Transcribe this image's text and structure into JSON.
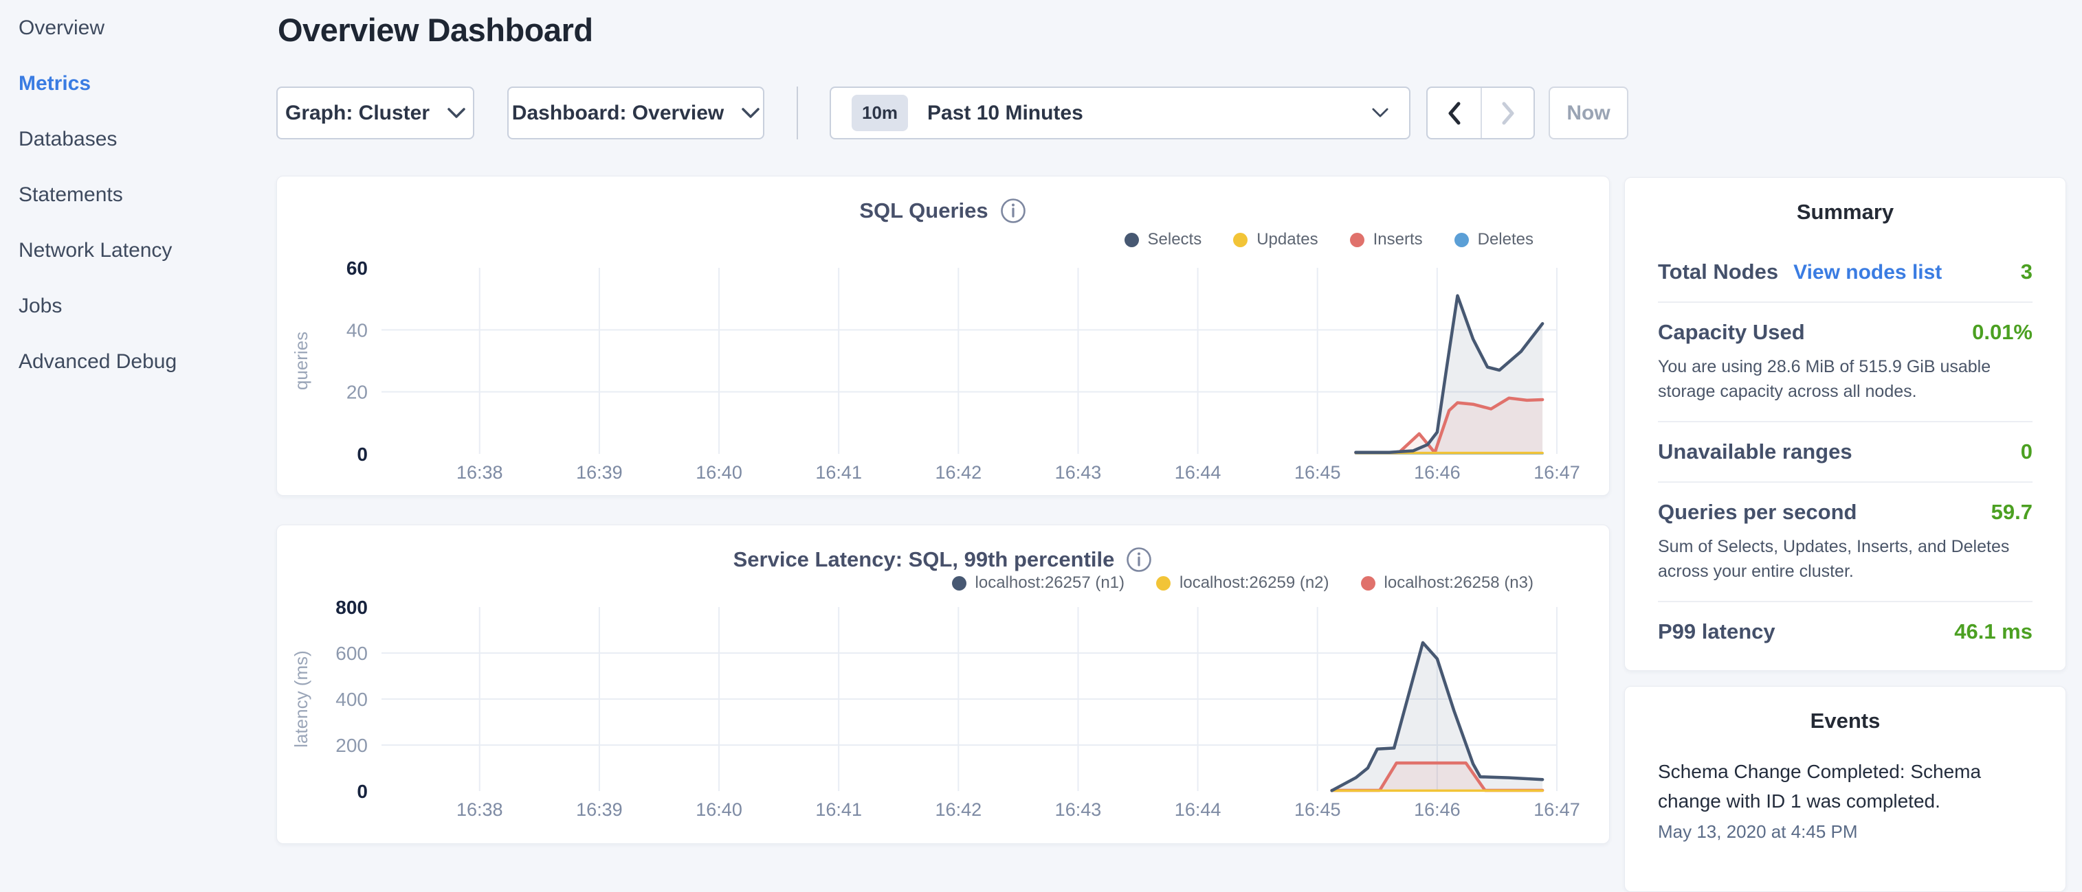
{
  "header": {
    "title": "Overview Dashboard"
  },
  "sidebar": {
    "active_color": "#3a7ce2",
    "items": [
      {
        "label": "Overview",
        "active": false
      },
      {
        "label": "Metrics",
        "active": true
      },
      {
        "label": "Databases",
        "active": false
      },
      {
        "label": "Statements",
        "active": false
      },
      {
        "label": "Network Latency",
        "active": false
      },
      {
        "label": "Jobs",
        "active": false
      },
      {
        "label": "Advanced Debug",
        "active": false
      }
    ]
  },
  "controls": {
    "graph_dropdown": "Graph: Cluster",
    "dashboard_dropdown": "Dashboard: Overview",
    "time_badge": "10m",
    "time_label": "Past 10 Minutes",
    "now_label": "Now"
  },
  "chart_data": [
    {
      "type": "area",
      "title": "SQL Queries",
      "ylabel": "queries",
      "ylim": [
        0,
        60
      ],
      "yticks": [
        0,
        20,
        40,
        60
      ],
      "grid": true,
      "legend_position": "top-right",
      "x_axis": {
        "start_min": 37.18,
        "end_min": 47.0,
        "tick_minutes": [
          38,
          39,
          40,
          41,
          42,
          43,
          44,
          45,
          46,
          47
        ],
        "tick_labels": [
          "16:38",
          "16:39",
          "16:40",
          "16:41",
          "16:42",
          "16:43",
          "16:44",
          "16:45",
          "16:46",
          "16:47"
        ]
      },
      "series": [
        {
          "name": "Selects",
          "color": "#475872",
          "fill": "rgba(71,88,114,0.10)",
          "width": 4.5,
          "points": [
            [
              45.32,
              0.5
            ],
            [
              45.6,
              0.5
            ],
            [
              45.8,
              1
            ],
            [
              45.92,
              3
            ],
            [
              46.0,
              7
            ],
            [
              46.08,
              28
            ],
            [
              46.17,
              51
            ],
            [
              46.3,
              37
            ],
            [
              46.42,
              28
            ],
            [
              46.52,
              27
            ],
            [
              46.7,
              33
            ],
            [
              46.88,
              42
            ]
          ]
        },
        {
          "name": "Updates",
          "color": "#f2c437",
          "width": 3.5,
          "points": [
            [
              45.32,
              0.3
            ],
            [
              46.88,
              0.3
            ]
          ]
        },
        {
          "name": "Inserts",
          "color": "#e0716b",
          "fill": "rgba(224,113,107,0.10)",
          "width": 4.5,
          "points": [
            [
              45.32,
              0.4
            ],
            [
              45.68,
              0.4
            ],
            [
              45.85,
              6.5
            ],
            [
              45.98,
              0.4
            ],
            [
              46.1,
              14
            ],
            [
              46.17,
              16.5
            ],
            [
              46.3,
              16
            ],
            [
              46.45,
              14.5
            ],
            [
              46.6,
              18
            ],
            [
              46.75,
              17.3
            ],
            [
              46.88,
              17.5
            ]
          ]
        },
        {
          "name": "Deletes",
          "color": "#5b9fd6",
          "width": 3.5,
          "points": [
            [
              45.32,
              0.2
            ],
            [
              46.88,
              0.2
            ]
          ]
        }
      ]
    },
    {
      "type": "area",
      "title": "Service Latency: SQL, 99th percentile",
      "ylabel": "latency (ms)",
      "ylim": [
        0,
        800
      ],
      "yticks": [
        0,
        200,
        400,
        600,
        800
      ],
      "grid": true,
      "legend_position": "top-right",
      "x_axis": {
        "start_min": 37.18,
        "end_min": 47.0,
        "tick_minutes": [
          38,
          39,
          40,
          41,
          42,
          43,
          44,
          45,
          46,
          47
        ],
        "tick_labels": [
          "16:38",
          "16:39",
          "16:40",
          "16:41",
          "16:42",
          "16:43",
          "16:44",
          "16:45",
          "16:46",
          "16:47"
        ]
      },
      "series": [
        {
          "name": "localhost:26257 (n1)",
          "color": "#475872",
          "fill": "rgba(71,88,114,0.10)",
          "width": 4.5,
          "points": [
            [
              45.12,
              2
            ],
            [
              45.22,
              30
            ],
            [
              45.32,
              58
            ],
            [
              45.42,
              100
            ],
            [
              45.5,
              183
            ],
            [
              45.64,
              187
            ],
            [
              45.88,
              645
            ],
            [
              46.0,
              575
            ],
            [
              46.14,
              350
            ],
            [
              46.3,
              118
            ],
            [
              46.36,
              62
            ],
            [
              46.6,
              58
            ],
            [
              46.88,
              50
            ]
          ]
        },
        {
          "name": "localhost:26259 (n2)",
          "color": "#f2c437",
          "width": 3.5,
          "points": [
            [
              45.12,
              2
            ],
            [
              46.88,
              2
            ]
          ]
        },
        {
          "name": "localhost:26258 (n3)",
          "color": "#e0716b",
          "fill": "rgba(224,113,107,0.10)",
          "width": 4.5,
          "points": [
            [
              45.12,
              3
            ],
            [
              45.52,
              3
            ],
            [
              45.66,
              122
            ],
            [
              46.24,
              122
            ],
            [
              46.4,
              3
            ],
            [
              46.88,
              3
            ]
          ]
        }
      ]
    }
  ],
  "summary": {
    "title": "Summary",
    "value_color": "#4ba021",
    "rows": [
      {
        "label": "Total Nodes",
        "link": "View nodes list",
        "value": "3"
      },
      {
        "label": "Capacity Used",
        "value": "0.01%",
        "desc": "You are using 28.6 MiB of 515.9 GiB usable storage capacity across all nodes."
      },
      {
        "label": "Unavailable ranges",
        "value": "0"
      },
      {
        "label": "Queries per second",
        "value": "59.7",
        "desc": "Sum of Selects, Updates, Inserts, and Deletes across your entire cluster."
      },
      {
        "label": "P99 latency",
        "value": "46.1 ms"
      }
    ]
  },
  "events": {
    "title": "Events",
    "items": [
      {
        "message": "Schema Change Completed: Schema change with ID 1 was completed.",
        "timestamp": "May 13, 2020 at 4:45 PM"
      }
    ]
  }
}
